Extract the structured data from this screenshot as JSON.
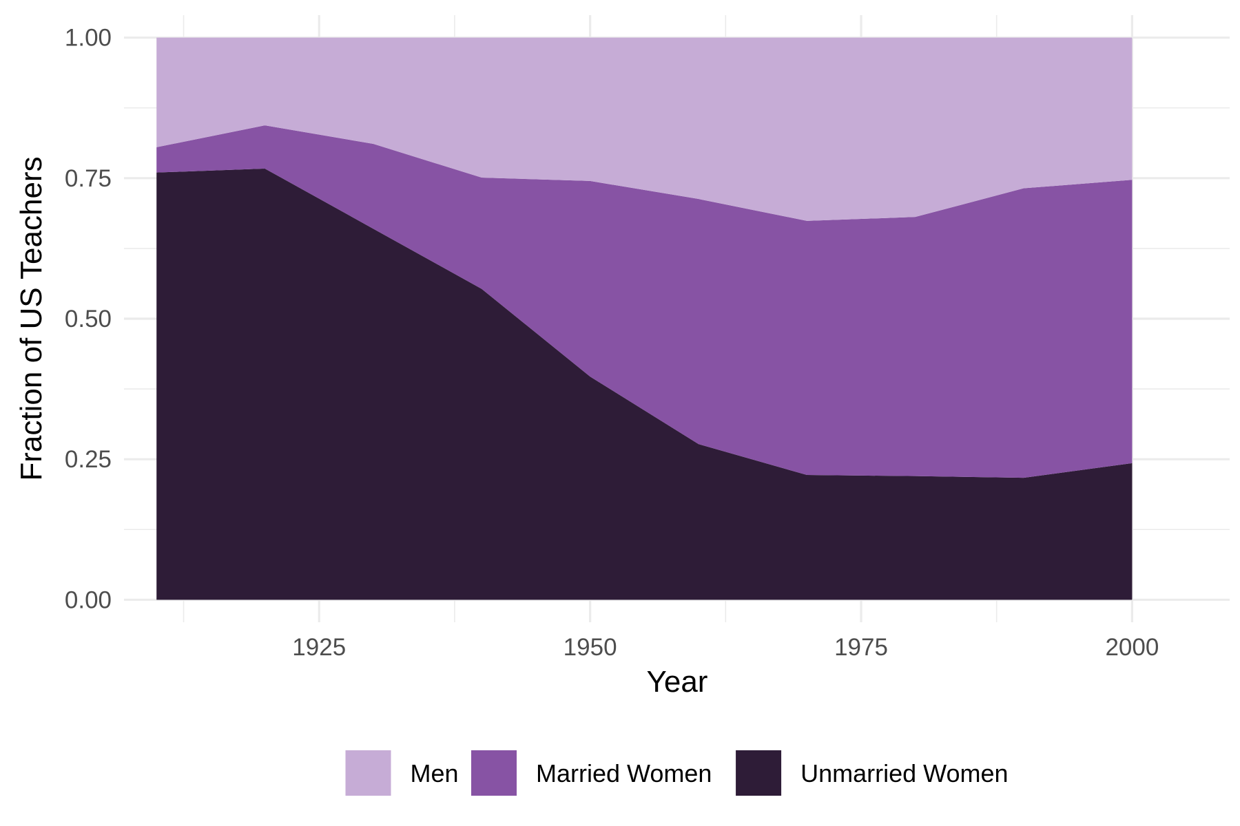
{
  "chart_data": {
    "type": "area",
    "stacked": true,
    "xlabel": "Year",
    "ylabel": "Fraction of US Teachers",
    "xlim": [
      1907,
      2009
    ],
    "ylim": [
      -0.04,
      1.04
    ],
    "x_ticks": [
      1925,
      1950,
      1975,
      2000
    ],
    "x_tick_labels": [
      "1925",
      "1950",
      "1975",
      "2000"
    ],
    "x_minor_ticks": [
      1912.5,
      1937.5,
      1962.5,
      1987.5
    ],
    "y_ticks": [
      0,
      0.25,
      0.5,
      0.75,
      1
    ],
    "y_tick_labels": [
      "0.00",
      "0.25",
      "0.50",
      "0.75",
      "1.00"
    ],
    "y_minor_ticks": [
      0.125,
      0.375,
      0.625,
      0.875
    ],
    "grid": true,
    "legend_position": "bottom",
    "x": [
      1910,
      1920,
      1930,
      1940,
      1950,
      1960,
      1970,
      1980,
      1990,
      2000
    ],
    "series": [
      {
        "name": "Unmarried Women",
        "color": "#2e1c37",
        "values": [
          0.76,
          0.767,
          0.66,
          0.553,
          0.397,
          0.277,
          0.222,
          0.22,
          0.217,
          0.243
        ]
      },
      {
        "name": "Married Women",
        "color": "#8753a4",
        "values": [
          0.045,
          0.077,
          0.151,
          0.198,
          0.348,
          0.436,
          0.452,
          0.461,
          0.515,
          0.504
        ]
      },
      {
        "name": "Men",
        "color": "#c6acd6",
        "values": [
          0.195,
          0.156,
          0.189,
          0.249,
          0.255,
          0.287,
          0.326,
          0.319,
          0.268,
          0.253
        ]
      }
    ],
    "legend_order": [
      "Men",
      "Married Women",
      "Unmarried Women"
    ]
  }
}
